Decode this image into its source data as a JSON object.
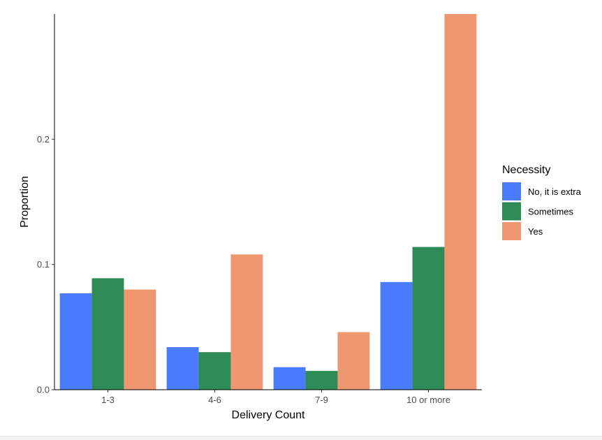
{
  "chart_data": {
    "type": "bar",
    "xlabel": "Delivery Count",
    "ylabel": "Proportion",
    "categories": [
      "1-3",
      "4-6",
      "7-9",
      "10 or more"
    ],
    "ylim": [
      0,
      0.3
    ],
    "yticks": [
      0.0,
      0.1,
      0.2
    ],
    "ytick_labels": [
      "0.0",
      "0.1",
      "0.2"
    ],
    "grid": false,
    "legend": {
      "title": "Necessity",
      "position": "right"
    },
    "series": [
      {
        "name": "No, it is extra",
        "color": "#4a7bff",
        "values": [
          0.077,
          0.034,
          0.018,
          0.086
        ]
      },
      {
        "name": "Sometimes",
        "color": "#2e8b57",
        "values": [
          0.089,
          0.03,
          0.015,
          0.114
        ]
      },
      {
        "name": "Yes",
        "color": "#ee9770",
        "values": [
          0.08,
          0.108,
          0.046,
          0.3
        ]
      }
    ]
  }
}
